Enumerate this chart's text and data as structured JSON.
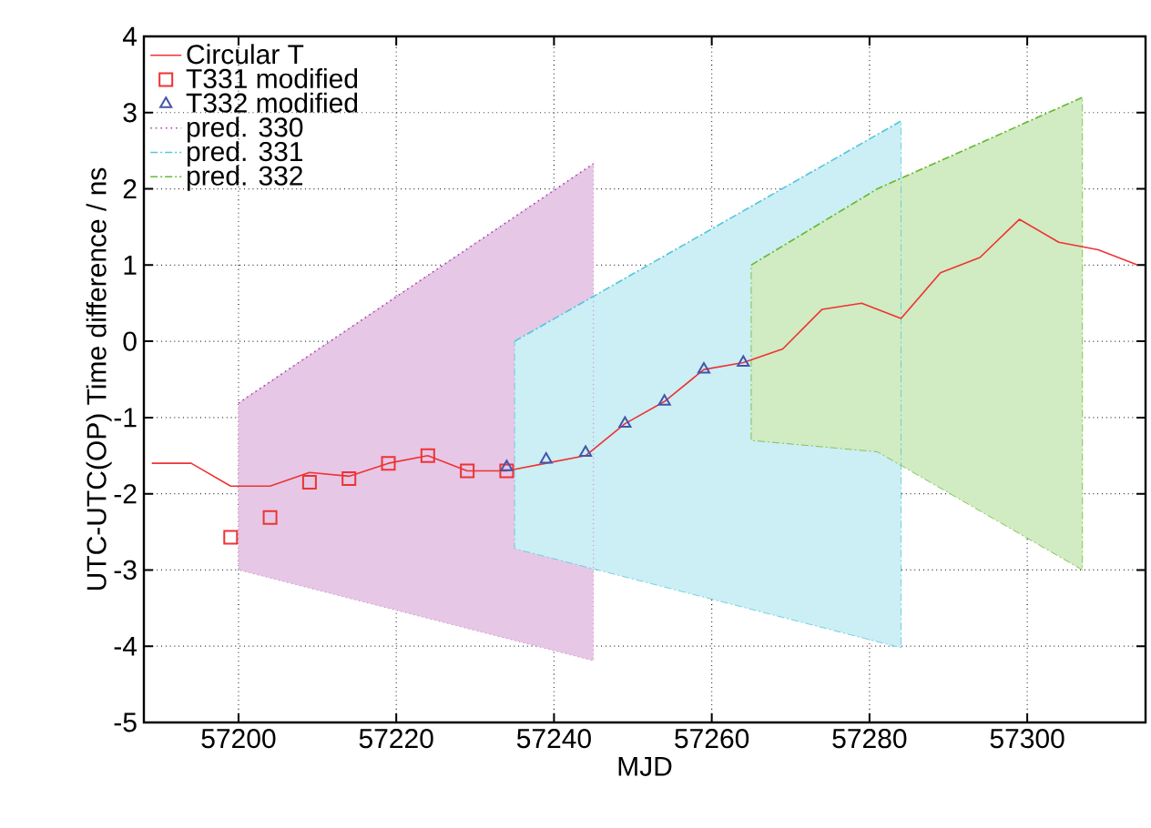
{
  "chart_data": {
    "type": "line",
    "xlabel": "MJD",
    "ylabel": "UTC-UTC(OP) Time difference / ns",
    "xlim": [
      57188,
      57315
    ],
    "ylim": [
      -5,
      4
    ],
    "xticks": [
      57200,
      57220,
      57240,
      57260,
      57280,
      57300
    ],
    "yticks": [
      -5,
      -4,
      -3,
      -2,
      -1,
      0,
      1,
      2,
      3,
      4
    ],
    "grid": true,
    "legend": "top left",
    "series": [
      {
        "name": "Circular T",
        "color": "#ee3333",
        "marker": "none",
        "line_style": "solid",
        "x": [
          57189,
          57194,
          57199,
          57204,
          57209,
          57214,
          57219,
          57224,
          57229,
          57234,
          57239,
          57244,
          57249,
          57254,
          57259,
          57264,
          57269,
          57274,
          57279,
          57284,
          57289,
          57294,
          57299,
          57304,
          57309,
          57314
        ],
        "values": [
          -1.6,
          -1.6,
          -1.9,
          -1.9,
          -1.72,
          -1.77,
          -1.6,
          -1.5,
          -1.7,
          -1.7,
          -1.6,
          -1.5,
          -1.08,
          -0.79,
          -0.37,
          -0.28,
          -0.1,
          0.42,
          0.5,
          0.3,
          0.9,
          1.1,
          1.6,
          1.3,
          1.2,
          1.0
        ]
      },
      {
        "name": "T331 modified",
        "type": "scatter",
        "color": "#ee3333",
        "marker": "square",
        "x": [
          57199,
          57204,
          57209,
          57214,
          57219,
          57224,
          57229,
          57234
        ],
        "values": [
          -2.57,
          -2.31,
          -1.85,
          -1.8,
          -1.6,
          -1.5,
          -1.7,
          -1.7
        ]
      },
      {
        "name": "T332 modified",
        "type": "scatter",
        "color": "#4455aa",
        "marker": "triangle",
        "x": [
          57234,
          57239,
          57244,
          57249,
          57254,
          57259,
          57264
        ],
        "values": [
          -1.65,
          -1.55,
          -1.46,
          -1.08,
          -0.79,
          -0.37,
          -0.28
        ]
      },
      {
        "name": "pred. 330",
        "type": "line",
        "color": "#aa44aa",
        "line_style": "dotted",
        "x": [
          57200,
          57245
        ],
        "values": [
          -0.81,
          2.33
        ],
        "lower": [
          -3.0,
          -4.19
        ],
        "upper": [
          -0.81,
          2.33
        ]
      },
      {
        "name": "pred. 331",
        "type": "line",
        "color": "#55c8dd",
        "line_style": "dashed",
        "x": [
          57235,
          57284
        ],
        "values": [
          0.0,
          2.89
        ],
        "lower": [
          -2.72,
          -4.02
        ],
        "upper": [
          0.0,
          2.89
        ]
      },
      {
        "name": "pred. 332",
        "type": "line",
        "color": "#66bb33",
        "line_style": "dashed",
        "x": [
          57265,
          57281,
          57307
        ],
        "values": [
          1.0,
          2.0,
          3.2
        ],
        "lower": [
          -1.3,
          -1.45,
          -3.0
        ],
        "upper": [
          1.0,
          2.0,
          3.2
        ]
      }
    ]
  }
}
